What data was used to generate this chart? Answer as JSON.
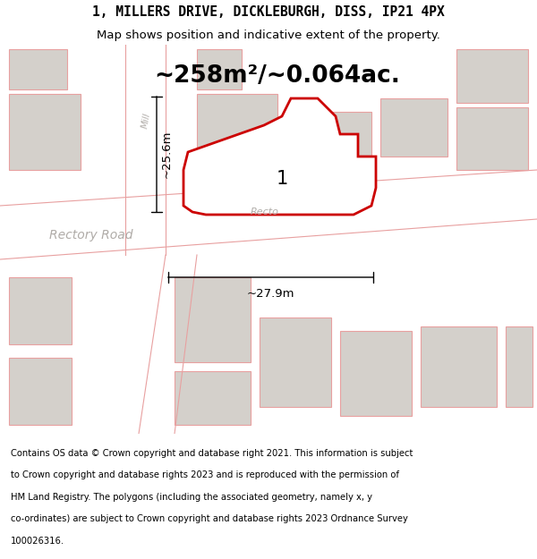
{
  "title_line1": "1, MILLERS DRIVE, DICKLEBURGH, DISS, IP21 4PX",
  "title_line2": "Map shows position and indicative extent of the property.",
  "area_text": "~258m²/~0.064ac.",
  "label_1": "1",
  "dim_width": "~27.9m",
  "dim_height": "~25.6m",
  "road_label_rectory": "Rectory Road",
  "road_label_recto": "Recto",
  "road_label_millers": "Mill",
  "footer_text": "Contains OS data © Crown copyright and database right 2021. This information is subject to Crown copyright and database rights 2023 and is reproduced with the permission of HM Land Registry. The polygons (including the associated geometry, namely x, y co-ordinates) are subject to Crown copyright and database rights 2023 Ordnance Survey 100026316.",
  "map_bg": "#f0eeeb",
  "road_fill": "#ffffff",
  "building_fill": "#d4d0cb",
  "building_edge": "#e8a0a0",
  "road_edge": "#e8a0a0",
  "prop_edge": "#cc0000",
  "prop_fill": "#ffffff",
  "road_label_color": "#b0aca8",
  "title_fs": 10.5,
  "subtitle_fs": 9.5,
  "area_fs": 19,
  "label_fs": 15,
  "footer_fs": 7.2,
  "road_fs": 10,
  "dim_fs": 9.5
}
